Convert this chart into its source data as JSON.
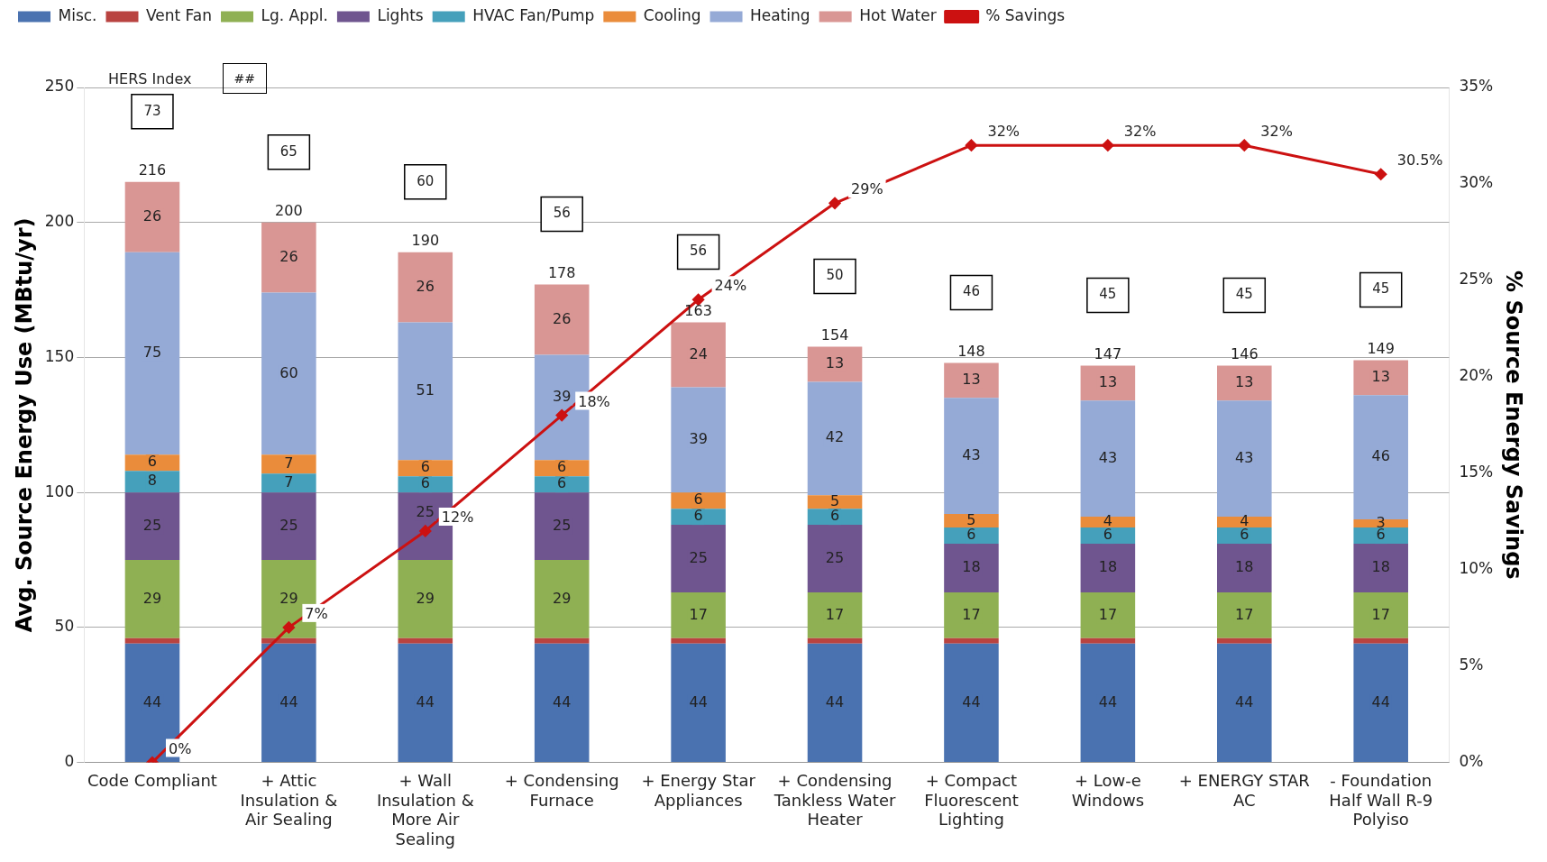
{
  "chart_data": {
    "type": "bar",
    "stacked": true,
    "ylabel": "Avg. Source Energy Use (MBtu/yr)",
    "y2label": "% Source Energy Savings",
    "categories": [
      "Code Compliant",
      "+ Attic Insulation & Air Sealing",
      "+ Wall Insulation & More Air Sealing",
      "+ Condensing Furnace",
      "+ Energy Star Appliances",
      "+ Condensing Tankless Water Heater",
      "+ Compact Fluorescent Lighting",
      "+ Low-e Windows",
      "+ ENERGY STAR AC",
      "- Foundation Half Wall R-9 Polyiso"
    ],
    "series": [
      {
        "name": "Misc.",
        "color": "#4a72b0",
        "values": [
          44,
          44,
          44,
          44,
          44,
          44,
          44,
          44,
          44,
          44
        ],
        "value_labels": [
          "44",
          "44",
          "44",
          "44",
          "44",
          "44",
          "44",
          "44",
          "44",
          "44"
        ]
      },
      {
        "name": "Vent Fan",
        "color": "#b94340",
        "values": [
          2,
          2,
          2,
          2,
          2,
          2,
          2,
          2,
          2,
          2
        ]
      },
      {
        "name": "Lg. Appl.",
        "color": "#8fb053",
        "values": [
          29,
          29,
          29,
          29,
          17,
          17,
          17,
          17,
          17,
          17
        ],
        "value_labels": [
          "29",
          "29",
          "29",
          "29",
          "17",
          "17",
          "17",
          "17",
          "17",
          "17"
        ]
      },
      {
        "name": "Lights",
        "color": "#6f558f",
        "values": [
          25,
          25,
          25,
          25,
          25,
          25,
          18,
          18,
          18,
          18
        ],
        "value_labels": [
          "25",
          "25",
          "25",
          "25",
          "25",
          "25",
          "18",
          "18",
          "18",
          "18"
        ]
      },
      {
        "name": "HVAC Fan/Pump",
        "color": "#45a0bb",
        "values": [
          8,
          7,
          6,
          6,
          6,
          6,
          6,
          6,
          6,
          6
        ],
        "value_labels": [
          "8",
          "7",
          "6",
          "6",
          "6",
          "6",
          "6",
          "6",
          "6",
          "6"
        ]
      },
      {
        "name": "Cooling",
        "color": "#ea8c3b",
        "values": [
          6,
          7,
          6,
          6,
          6,
          5,
          5,
          4,
          4,
          3
        ],
        "value_labels": [
          "6",
          "7",
          "6",
          "6",
          "6",
          "5",
          "5",
          "4",
          "4",
          "3"
        ]
      },
      {
        "name": "Heating",
        "color": "#95aad6",
        "values": [
          75,
          60,
          51,
          39,
          39,
          42,
          43,
          43,
          43,
          46
        ],
        "value_labels": [
          "75",
          "60",
          "51",
          "39",
          "39",
          "42",
          "43",
          "43",
          "43",
          "46"
        ]
      },
      {
        "name": "Hot Water",
        "color": "#d99694",
        "values": [
          26,
          26,
          26,
          26,
          24,
          13,
          13,
          13,
          13,
          13
        ],
        "value_labels": [
          "26",
          "26",
          "26",
          "26",
          "24",
          "13",
          "13",
          "13",
          "13",
          "13"
        ]
      },
      {
        "name": "% Savings",
        "type": "line",
        "axis": "y2",
        "color": "#cc1111",
        "marker": "diamond",
        "values": [
          0,
          7,
          12,
          18,
          24,
          29,
          32,
          32,
          32,
          30.5
        ],
        "value_labels": [
          "0%",
          "7%",
          "12%",
          "18%",
          "24%",
          "29%",
          "32%",
          "32%",
          "32%",
          "30.5%"
        ]
      }
    ],
    "totals": [
      "216",
      "200",
      "190",
      "178",
      "163",
      "154",
      "148",
      "147",
      "146",
      "149"
    ],
    "ylim": [
      0,
      250
    ],
    "yticks": [
      0,
      50,
      100,
      150,
      200,
      250
    ],
    "y2lim": [
      0,
      35
    ],
    "y2ticks": [
      {
        "value": 0,
        "label": "0%"
      },
      {
        "value": 5,
        "label": "5%"
      },
      {
        "value": 10,
        "label": "10%"
      },
      {
        "value": 15,
        "label": "15%"
      },
      {
        "value": 20,
        "label": "20%"
      },
      {
        "value": 25,
        "label": "25%"
      },
      {
        "value": 30,
        "label": "30%"
      },
      {
        "value": 35,
        "label": "35%"
      }
    ],
    "grid": "y",
    "legend": "top",
    "annotations": [
      "HERS Index",
      "##",
      "73",
      "65",
      "60",
      "56",
      "56",
      "50",
      "46",
      "45",
      "45",
      "45"
    ]
  }
}
